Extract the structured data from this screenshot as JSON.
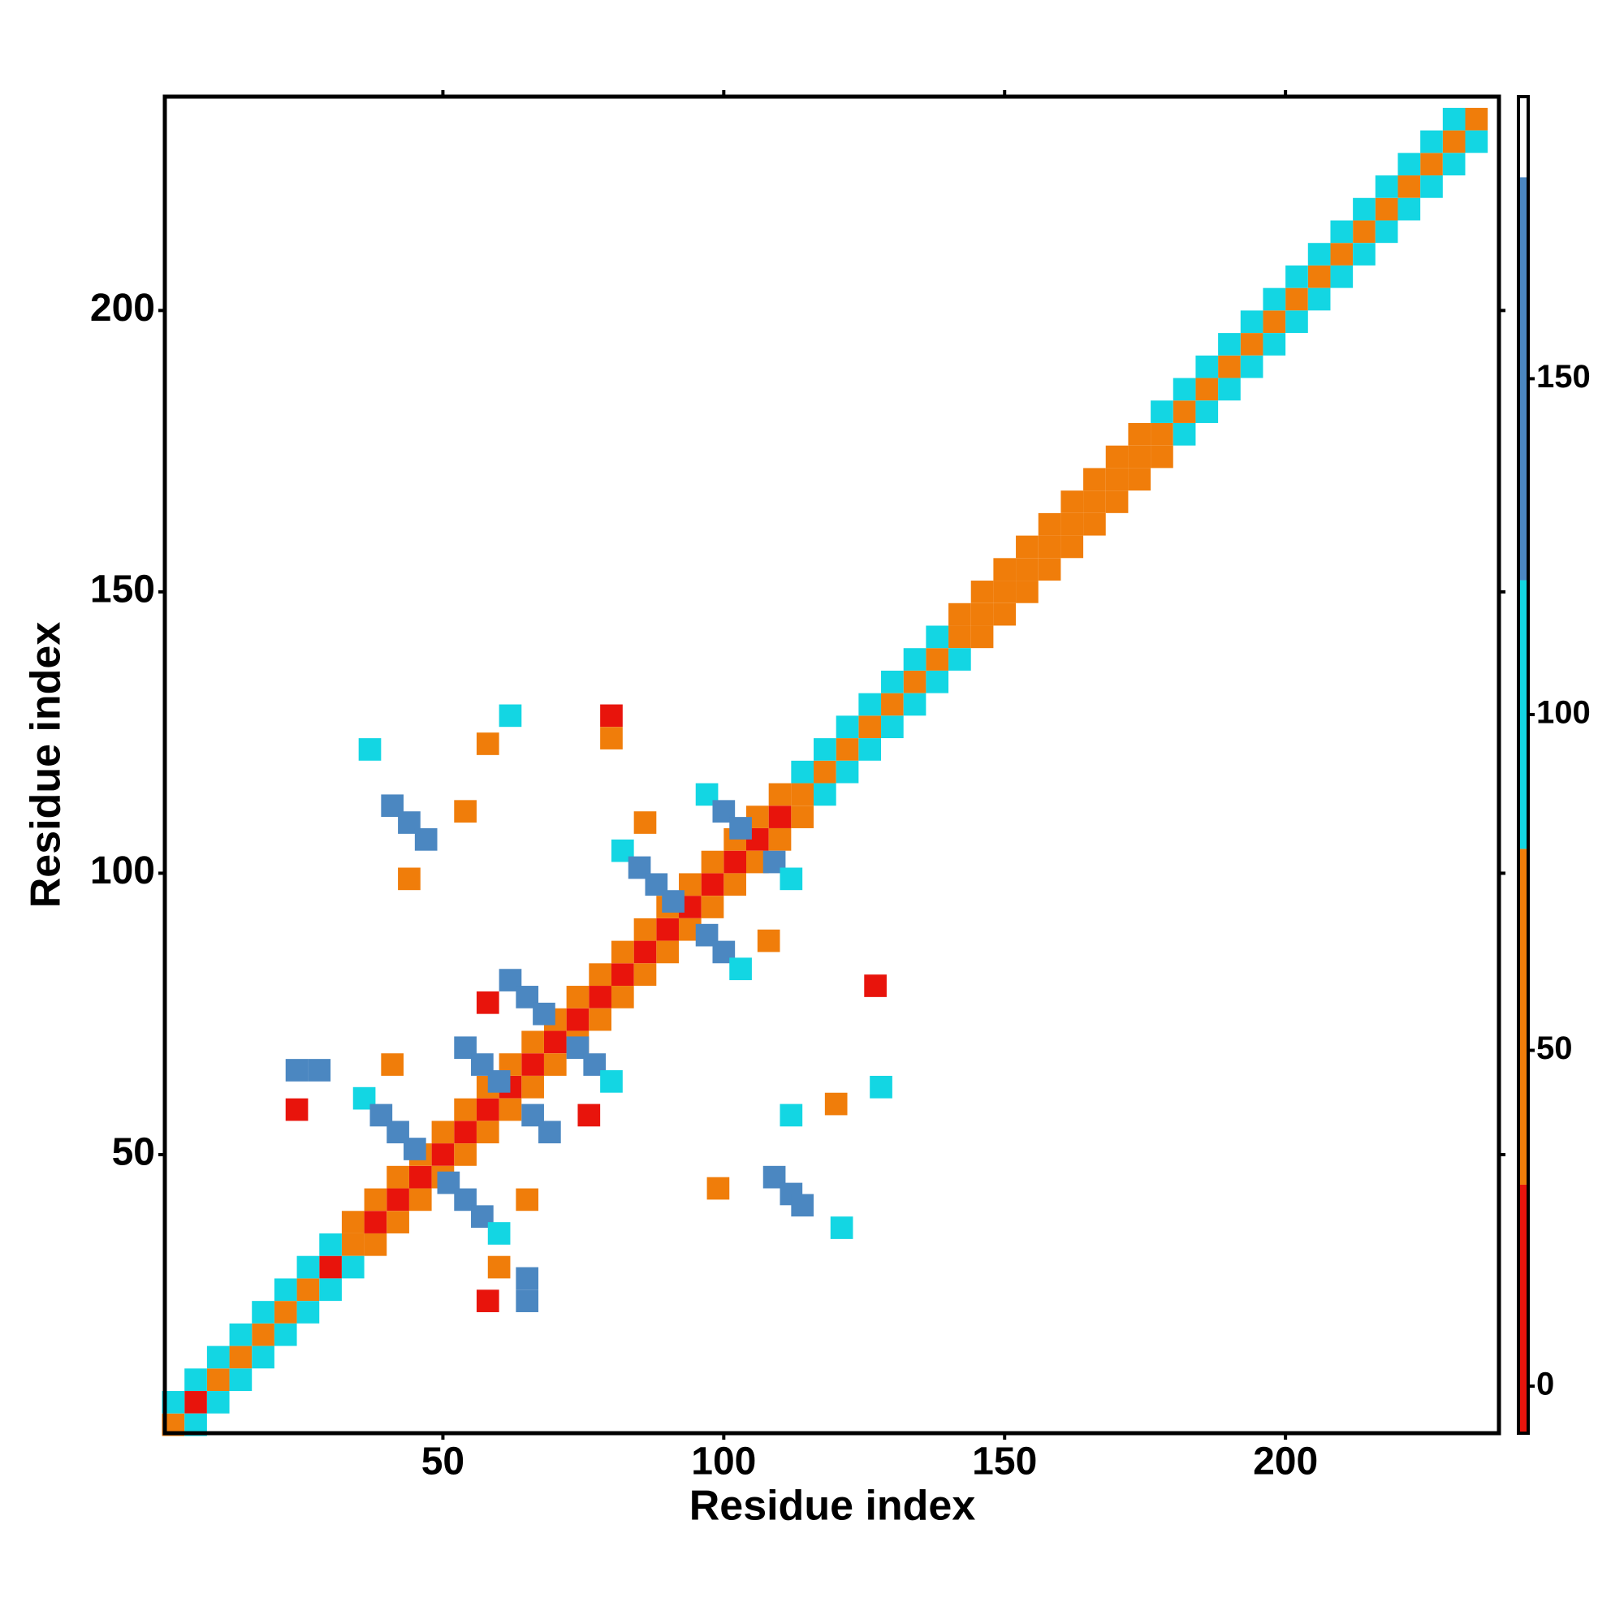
{
  "chart_data": {
    "type": "heatmap",
    "xlabel": "Residue index",
    "ylabel": "Residue index",
    "xlim": [
      0.5,
      238
    ],
    "ylim": [
      0.5,
      238
    ],
    "xticks": [
      50,
      100,
      150,
      200
    ],
    "yticks": [
      50,
      100,
      150,
      200
    ],
    "colorbar": {
      "lim": [
        -7,
        192
      ],
      "ticks": [
        0,
        50,
        100,
        150
      ],
      "bins": [
        -7,
        30,
        80,
        120,
        180,
        192
      ],
      "colors": [
        "#e8140c",
        "#f07d0a",
        "#13d6e3",
        "#4b87c1",
        "#ffffff"
      ]
    },
    "cells": {
      "x": [
        2,
        6,
        10,
        14,
        18,
        22,
        26,
        30,
        34,
        38,
        42,
        46,
        50,
        54,
        58,
        62,
        66,
        70,
        74,
        78,
        82,
        86,
        90,
        94,
        98,
        102,
        106,
        110,
        114,
        118,
        122,
        126,
        130,
        134,
        138,
        142,
        146,
        150,
        154,
        158,
        162,
        166,
        170,
        174,
        178,
        182,
        186,
        190,
        194,
        198,
        202,
        206,
        210,
        214,
        218,
        222,
        226,
        230,
        234,
        2,
        6,
        10,
        14,
        18,
        22,
        26,
        30,
        34,
        38,
        42,
        46,
        50,
        54,
        58,
        62,
        66,
        70,
        74,
        78,
        82,
        86,
        90,
        94,
        98,
        102,
        106,
        110,
        114,
        118,
        122,
        126,
        130,
        134,
        138,
        142,
        146,
        150,
        154,
        158,
        162,
        166,
        170,
        174,
        178,
        182,
        186,
        190,
        194,
        198,
        202,
        206,
        210,
        214,
        218,
        222,
        226,
        230,
        6,
        10,
        14,
        18,
        22,
        26,
        30,
        34,
        38,
        42,
        46,
        50,
        54,
        58,
        62,
        66,
        70,
        74,
        78,
        82,
        86,
        90,
        94,
        98,
        102,
        106,
        110,
        114,
        118,
        122,
        126,
        130,
        134,
        138,
        142,
        146,
        150,
        154,
        158,
        162,
        166,
        170,
        174,
        178,
        182,
        186,
        190,
        194,
        198,
        202,
        206,
        210,
        214,
        218,
        222,
        226,
        230,
        234,
        36,
        39,
        42,
        45,
        51,
        54,
        57,
        60,
        54,
        57,
        60,
        66,
        69,
        62,
        65,
        68,
        74,
        77,
        80,
        82,
        85,
        88,
        91,
        97,
        100,
        103,
        97,
        100,
        103,
        109,
        112,
        41,
        44,
        47,
        109,
        112,
        114,
        80,
        80,
        62,
        58,
        37,
        44,
        54,
        86,
        108,
        127,
        120,
        128,
        112,
        99,
        121,
        65,
        60,
        65,
        58,
        65,
        24,
        28,
        24,
        41,
        58,
        76
      ],
      "y": [
        2,
        6,
        10,
        14,
        18,
        22,
        26,
        30,
        34,
        38,
        42,
        46,
        50,
        54,
        58,
        62,
        66,
        70,
        74,
        78,
        82,
        86,
        90,
        94,
        98,
        102,
        106,
        110,
        114,
        118,
        122,
        126,
        130,
        134,
        138,
        142,
        146,
        150,
        154,
        158,
        162,
        166,
        170,
        174,
        178,
        182,
        186,
        190,
        194,
        198,
        202,
        206,
        210,
        214,
        218,
        222,
        226,
        230,
        234,
        6,
        10,
        14,
        18,
        22,
        26,
        30,
        34,
        38,
        42,
        46,
        50,
        54,
        58,
        62,
        66,
        70,
        74,
        78,
        82,
        86,
        90,
        94,
        98,
        102,
        106,
        110,
        114,
        118,
        122,
        126,
        130,
        134,
        138,
        142,
        146,
        150,
        154,
        158,
        162,
        166,
        170,
        174,
        178,
        182,
        186,
        190,
        194,
        198,
        202,
        206,
        210,
        214,
        218,
        222,
        226,
        230,
        234,
        2,
        6,
        10,
        14,
        18,
        22,
        26,
        30,
        34,
        38,
        42,
        46,
        50,
        54,
        58,
        62,
        66,
        70,
        74,
        78,
        82,
        86,
        90,
        94,
        98,
        102,
        106,
        110,
        114,
        118,
        122,
        126,
        130,
        134,
        138,
        142,
        146,
        150,
        154,
        158,
        162,
        166,
        170,
        174,
        178,
        182,
        186,
        190,
        194,
        198,
        202,
        206,
        210,
        214,
        218,
        222,
        226,
        230,
        60,
        57,
        54,
        51,
        45,
        42,
        39,
        36,
        69,
        66,
        63,
        57,
        54,
        81,
        78,
        75,
        69,
        66,
        63,
        104,
        101,
        98,
        95,
        89,
        86,
        83,
        114,
        111,
        108,
        102,
        99,
        112,
        109,
        106,
        46,
        43,
        41,
        128,
        124,
        128,
        123,
        122,
        99,
        111,
        109,
        88,
        80,
        59,
        62,
        57,
        44,
        37,
        42,
        30,
        28,
        24,
        24,
        65,
        65,
        58,
        66,
        77,
        57
      ],
      "values": [
        45,
        20,
        45,
        60,
        45,
        60,
        45,
        20,
        45,
        20,
        10,
        15,
        10,
        15,
        10,
        15,
        10,
        15,
        10,
        15,
        10,
        15,
        10,
        15,
        10,
        15,
        10,
        15,
        60,
        45,
        60,
        45,
        60,
        45,
        60,
        45,
        60,
        45,
        60,
        45,
        60,
        45,
        60,
        45,
        60,
        45,
        60,
        45,
        60,
        45,
        60,
        45,
        60,
        45,
        60,
        45,
        60,
        45,
        60,
        100,
        100,
        100,
        100,
        100,
        100,
        100,
        100,
        65,
        65,
        65,
        65,
        65,
        65,
        65,
        65,
        65,
        65,
        65,
        65,
        65,
        65,
        65,
        65,
        65,
        65,
        65,
        65,
        100,
        100,
        100,
        100,
        100,
        100,
        100,
        65,
        65,
        65,
        65,
        65,
        65,
        65,
        65,
        65,
        100,
        100,
        100,
        100,
        100,
        100,
        100,
        100,
        100,
        100,
        100,
        100,
        100,
        100,
        100,
        100,
        100,
        100,
        100,
        100,
        100,
        100,
        65,
        65,
        65,
        65,
        65,
        65,
        65,
        65,
        65,
        65,
        65,
        65,
        65,
        65,
        65,
        65,
        65,
        65,
        65,
        65,
        100,
        100,
        100,
        100,
        100,
        100,
        100,
        65,
        65,
        65,
        65,
        65,
        65,
        65,
        65,
        65,
        100,
        100,
        100,
        100,
        100,
        100,
        100,
        100,
        100,
        100,
        100,
        100,
        100,
        100,
        110,
        160,
        160,
        160,
        160,
        160,
        160,
        110,
        160,
        160,
        160,
        160,
        160,
        160,
        160,
        160,
        160,
        160,
        110,
        110,
        160,
        160,
        160,
        160,
        160,
        110,
        110,
        160,
        160,
        160,
        110,
        160,
        160,
        160,
        160,
        160,
        160,
        10,
        60,
        100,
        60,
        100,
        60,
        60,
        60,
        60,
        10,
        60,
        100,
        100,
        60,
        100,
        60,
        60,
        160,
        10,
        160,
        160,
        160,
        10,
        60,
        10,
        10
      ]
    }
  }
}
